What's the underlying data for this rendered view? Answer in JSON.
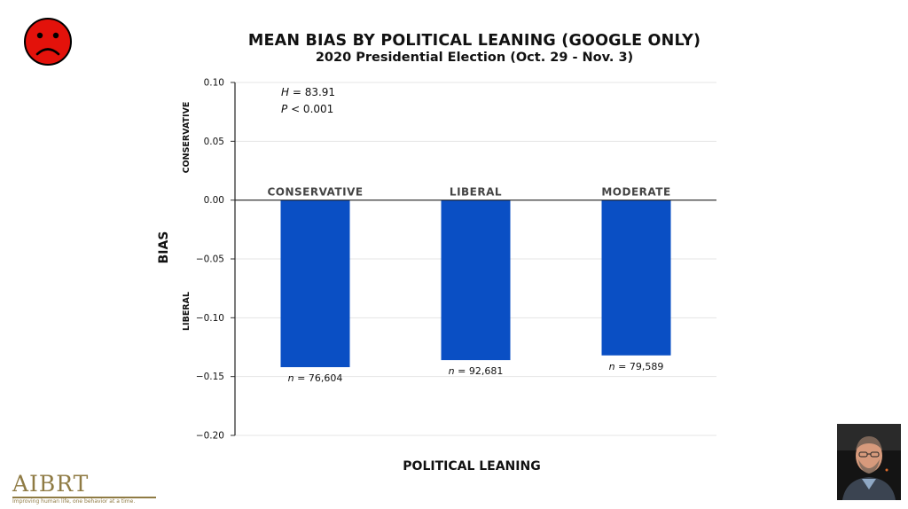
{
  "header": {
    "title": "MEAN BIAS BY POLITICAL LEANING (GOOGLE ONLY)",
    "subtitle": "2020 Presidential Election (Oct. 29 - Nov. 3)"
  },
  "icons": {
    "mood": "sad-face-icon"
  },
  "colors": {
    "bar": "#0a4fc4",
    "face": "#e3120b",
    "logo": "#8f7b44"
  },
  "branding": {
    "logo_text": "AIBRT",
    "logo_tagline": "Improving human life, one behavior at a time."
  },
  "chart_data": {
    "type": "bar",
    "categories": [
      "CONSERVATIVE",
      "LIBERAL",
      "MODERATE"
    ],
    "values": [
      -0.142,
      -0.136,
      -0.132
    ],
    "sample_labels": [
      "n = 76,604",
      "n = 92,681",
      "n = 79,589"
    ],
    "ylabel": "BIAS",
    "xlabel": "POLITICAL LEANING",
    "ylim": [
      -0.2,
      0.1
    ],
    "yticks": [
      0.1,
      0.05,
      0.0,
      -0.05,
      -0.1,
      -0.15,
      -0.2
    ],
    "ytick_labels": [
      "0.10",
      "0.05",
      "0.00",
      "−0.05",
      "−0.10",
      "−0.15",
      "−0.20"
    ],
    "side_labels": {
      "top": "CONSERVATIVE",
      "bottom": "LIBERAL"
    },
    "stats": {
      "h_name": "H",
      "h_value": "= 83.91",
      "p_name": "P",
      "p_value": "< 0.001"
    },
    "grid": true
  }
}
